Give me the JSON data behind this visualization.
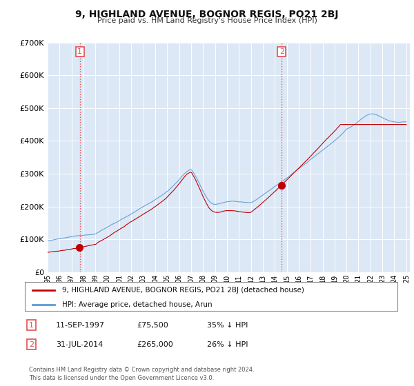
{
  "title": "9, HIGHLAND AVENUE, BOGNOR REGIS, PO21 2BJ",
  "subtitle": "Price paid vs. HM Land Registry's House Price Index (HPI)",
  "background_color": "#ffffff",
  "plot_bg_color": "#dce8f5",
  "grid_color": "#ffffff",
  "hpi_color": "#5b9bd5",
  "price_color": "#c00000",
  "vline_color": "#e05050",
  "transaction1_year": 1997.7,
  "transaction1_price": 75500,
  "transaction2_year": 2014.58,
  "transaction2_price": 265000,
  "ylim": [
    0,
    700000
  ],
  "yticks": [
    0,
    100000,
    200000,
    300000,
    400000,
    500000,
    600000,
    700000
  ],
  "ytick_labels": [
    "£0",
    "£100K",
    "£200K",
    "£300K",
    "£400K",
    "£500K",
    "£600K",
    "£700K"
  ],
  "legend_line1": "9, HIGHLAND AVENUE, BOGNOR REGIS, PO21 2BJ (detached house)",
  "legend_line2": "HPI: Average price, detached house, Arun",
  "note1_date": "11-SEP-1997",
  "note1_price": "£75,500",
  "note1_change": "35% ↓ HPI",
  "note2_date": "31-JUL-2014",
  "note2_price": "£265,000",
  "note2_change": "26% ↓ HPI",
  "footer": "Contains HM Land Registry data © Crown copyright and database right 2024.\nThis data is licensed under the Open Government Licence v3.0."
}
